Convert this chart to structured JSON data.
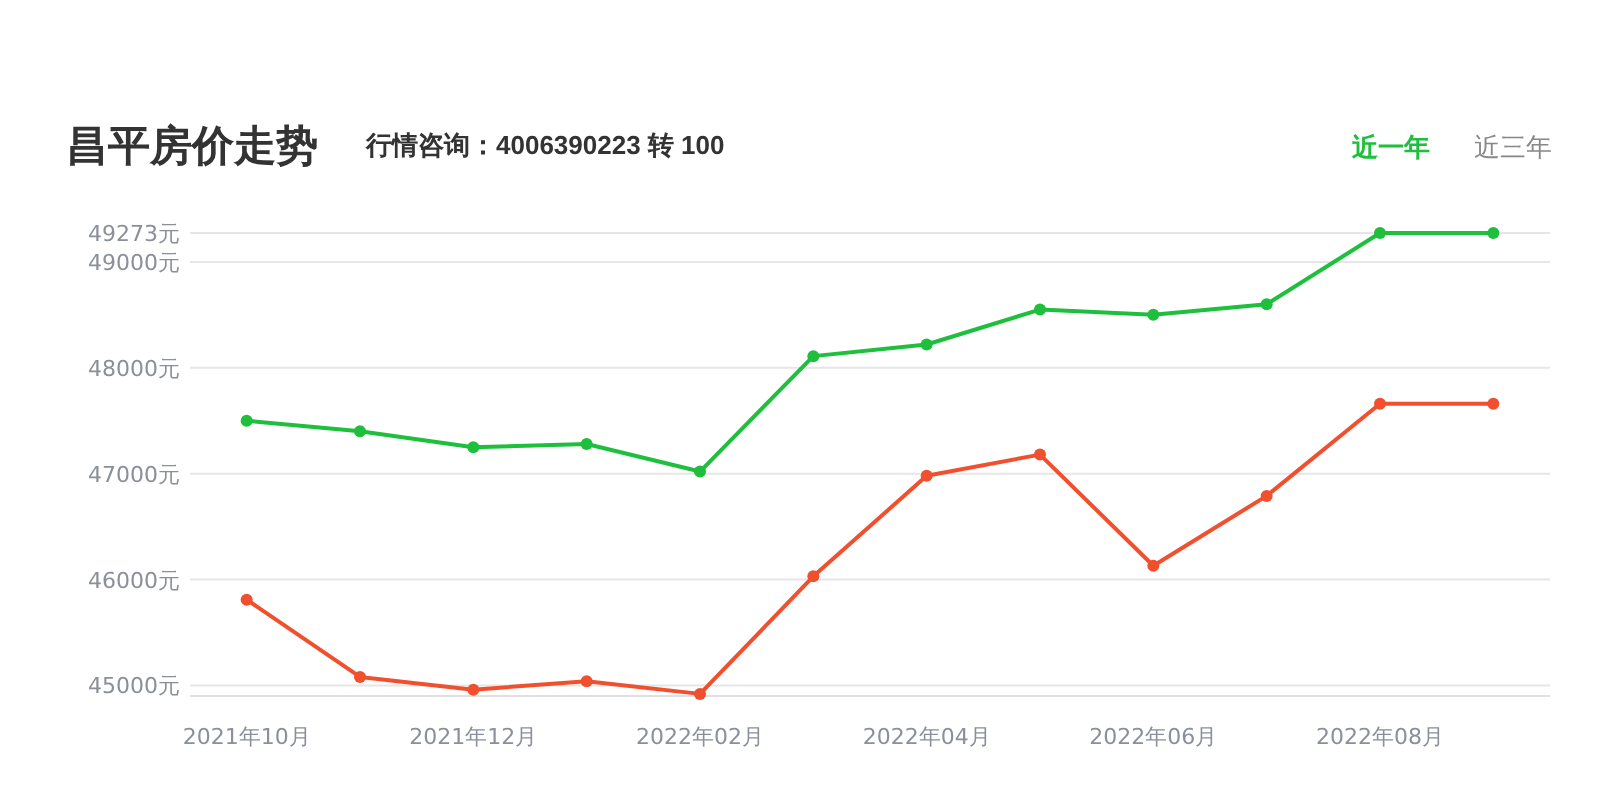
{
  "chart_data": {
    "type": "line",
    "title": "昌平房价走势",
    "subtitle": "行情咨询：4006390223 转 100",
    "annotations": [
      "近一年",
      "近三年"
    ],
    "categories": [
      "2021年10月",
      null,
      "2021年12月",
      null,
      "2022年02月",
      null,
      "2022年04月",
      null,
      "2022年06月",
      null,
      "2022年08月",
      null
    ],
    "series": [
      {
        "color": "#1dbf3c",
        "values": [
          47500,
          47400,
          47250,
          47280,
          47020,
          48110,
          48220,
          48550,
          48500,
          48600,
          49273,
          49273
        ]
      },
      {
        "color": "#f0502e",
        "values": [
          45810,
          45080,
          44960,
          45040,
          44920,
          46030,
          46980,
          47180,
          46130,
          46790,
          47660,
          47660
        ]
      }
    ],
    "ylim": [
      44900,
      49273
    ],
    "yticks": [
      {
        "value": 45000,
        "label": "45000元"
      },
      {
        "value": 46000,
        "label": "46000元"
      },
      {
        "value": 47000,
        "label": "47000元"
      },
      {
        "value": 48000,
        "label": "48000元"
      },
      {
        "value": 49000,
        "label": "49000元"
      },
      {
        "value": 49273,
        "label": "49273元"
      }
    ],
    "grid": "y",
    "marker": "circle",
    "line_style": "solid"
  }
}
